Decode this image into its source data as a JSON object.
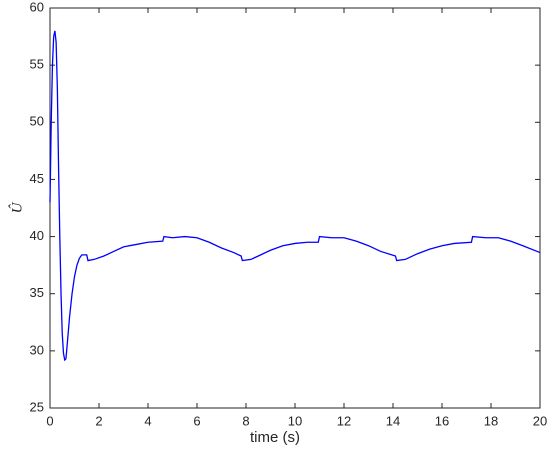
{
  "chart_data": {
    "type": "line",
    "xlabel": "time (s)",
    "ylabel": "Û",
    "x": [
      0,
      0.05,
      0.1,
      0.15,
      0.2,
      0.25,
      0.3,
      0.35,
      0.4,
      0.45,
      0.5,
      0.55,
      0.6,
      0.65,
      0.7,
      0.8,
      0.9,
      1.0,
      1.1,
      1.2,
      1.3,
      1.5,
      1.55,
      1.8,
      2.2,
      2.6,
      3.0,
      3.5,
      4.0,
      4.6,
      4.65,
      5.0,
      5.5,
      6.0,
      6.5,
      7.0,
      7.5,
      7.8,
      7.85,
      8.2,
      8.6,
      9.0,
      9.5,
      10.0,
      10.5,
      10.95,
      11.0,
      11.5,
      12.0,
      12.5,
      13.0,
      13.5,
      14.1,
      14.15,
      14.5,
      15.0,
      15.5,
      16.0,
      16.5,
      17.2,
      17.25,
      17.8,
      18.3,
      18.8,
      19.3,
      20
    ],
    "series": [
      {
        "color": "#0000ff",
        "values": [
          43,
          50,
          55,
          57.5,
          58,
          57,
          53,
          46,
          40,
          35,
          31.5,
          29.8,
          29.2,
          29.3,
          30.5,
          33,
          35,
          36.5,
          37.5,
          38.1,
          38.4,
          38.4,
          37.9,
          38.0,
          38.3,
          38.7,
          39.1,
          39.3,
          39.5,
          39.6,
          40.0,
          39.9,
          40.0,
          39.9,
          39.5,
          39.0,
          38.6,
          38.3,
          37.9,
          38.0,
          38.4,
          38.8,
          39.2,
          39.4,
          39.5,
          39.5,
          40.0,
          39.9,
          39.9,
          39.6,
          39.2,
          38.7,
          38.3,
          37.9,
          38.0,
          38.5,
          38.9,
          39.2,
          39.4,
          39.5,
          40.0,
          39.9,
          39.9,
          39.6,
          39.2,
          38.6
        ]
      }
    ],
    "xlim": [
      0,
      20
    ],
    "xticks": [
      0,
      2,
      4,
      6,
      8,
      10,
      12,
      14,
      16,
      18,
      20
    ],
    "ylim": [
      25,
      60
    ],
    "yticks": [
      25,
      30,
      35,
      40,
      45,
      50,
      55,
      60
    ]
  }
}
